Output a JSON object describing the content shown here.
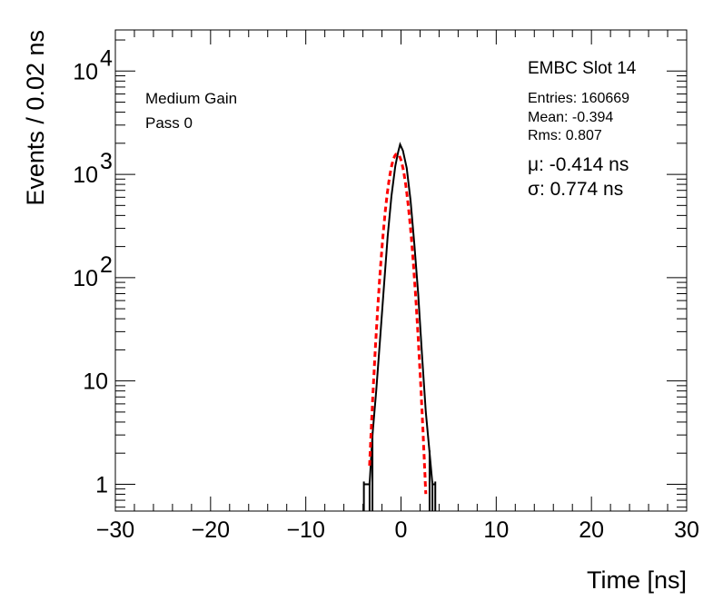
{
  "chart_data": {
    "type": "line",
    "title": "",
    "xlabel": "Time [ns]",
    "ylabel": "Events / 0.02 ns",
    "xlim": [
      -30,
      30
    ],
    "ylim": [
      0.55,
      25000
    ],
    "yscale": "log",
    "grid": false,
    "x_ticks": [
      -30,
      -20,
      -10,
      0,
      10,
      20,
      30
    ],
    "x_tick_labels": [
      "−30",
      "−20",
      "−10",
      "0",
      "10",
      "20",
      "30"
    ],
    "y_ticks": [
      1,
      10,
      100,
      1000,
      10000
    ],
    "y_tick_labels": [
      {
        "base": "1",
        "exp": ""
      },
      {
        "base": "10",
        "exp": ""
      },
      {
        "base": "10",
        "exp": "2"
      },
      {
        "base": "10",
        "exp": "3"
      },
      {
        "base": "10",
        "exp": "4"
      }
    ],
    "annotations": {
      "gain": "Medium Gain",
      "pass": "Pass 0",
      "module": "EMBC Slot 14",
      "entries": "Entries: 160669",
      "mean": "Mean: -0.394",
      "rms": "Rms: 0.807",
      "mu": "μ: -0.414 ns",
      "sigma": "σ: 0.774 ns"
    },
    "series": [
      {
        "name": "",
        "color": "#000000",
        "style": "histogram",
        "x": [
          -3.9,
          -3.3,
          -3.0,
          -2.6,
          -2.2,
          -1.8,
          -1.4,
          -1.0,
          -0.6,
          -0.3,
          -0.1,
          0.2,
          0.6,
          1.0,
          1.4,
          1.8,
          2.2,
          2.6,
          3.0,
          3.3,
          3.6
        ],
        "y": [
          1,
          1,
          3,
          8,
          25,
          80,
          250,
          620,
          1200,
          1650,
          1950,
          1700,
          1150,
          560,
          210,
          70,
          18,
          5,
          2,
          1,
          1
        ]
      },
      {
        "name": "",
        "color": "#ff0000",
        "style": "fit-dashed",
        "mu": -0.414,
        "sigma": 0.774,
        "amplitude": 1580,
        "x_range": [
          -3.3,
          2.6
        ]
      }
    ]
  }
}
